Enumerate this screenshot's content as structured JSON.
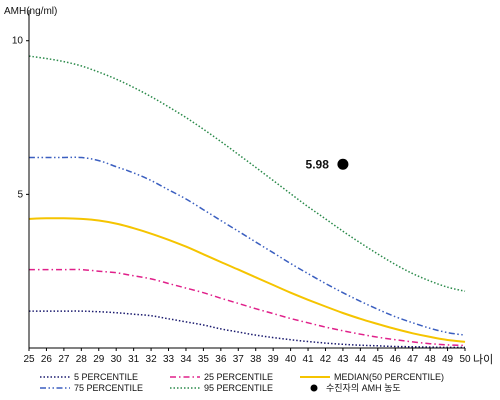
{
  "chart_data": {
    "type": "line",
    "title": "",
    "ylabel": "AMH(ng/ml)",
    "xlabel": "나이",
    "xlim": [
      25,
      50
    ],
    "ylim": [
      0,
      11
    ],
    "yticks": [
      5,
      10
    ],
    "x": [
      25,
      26,
      27,
      28,
      29,
      30,
      31,
      32,
      33,
      34,
      35,
      36,
      37,
      38,
      39,
      40,
      41,
      42,
      43,
      44,
      45,
      46,
      47,
      48,
      49,
      50
    ],
    "series": [
      {
        "name": "5 PERCENTILE",
        "color": "#1a1a6e",
        "dash": "dot",
        "values": [
          1.2,
          1.2,
          1.2,
          1.2,
          1.18,
          1.15,
          1.1,
          1.05,
          0.95,
          0.85,
          0.75,
          0.62,
          0.52,
          0.42,
          0.34,
          0.27,
          0.21,
          0.16,
          0.12,
          0.09,
          0.07,
          0.05,
          0.04,
          0.03,
          0.02,
          0.02
        ]
      },
      {
        "name": "25 PERCENTILE",
        "color": "#e0208a",
        "dash": "dashdot",
        "values": [
          2.55,
          2.55,
          2.55,
          2.55,
          2.5,
          2.45,
          2.35,
          2.25,
          2.1,
          1.95,
          1.8,
          1.62,
          1.45,
          1.28,
          1.12,
          0.96,
          0.82,
          0.68,
          0.56,
          0.45,
          0.35,
          0.27,
          0.2,
          0.14,
          0.1,
          0.08
        ]
      },
      {
        "name": "MEDIAN(50 PERCENTILE)",
        "color": "#f5c400",
        "dash": "solid",
        "values": [
          4.2,
          4.22,
          4.22,
          4.2,
          4.15,
          4.05,
          3.9,
          3.72,
          3.52,
          3.3,
          3.05,
          2.8,
          2.55,
          2.3,
          2.05,
          1.8,
          1.57,
          1.35,
          1.14,
          0.95,
          0.78,
          0.62,
          0.48,
          0.36,
          0.26,
          0.2
        ]
      },
      {
        "name": "75 PERCENTILE",
        "color": "#3b5fc0",
        "dash": "dashdotdot",
        "values": [
          6.2,
          6.2,
          6.2,
          6.2,
          6.1,
          5.9,
          5.7,
          5.45,
          5.15,
          4.85,
          4.5,
          4.15,
          3.8,
          3.45,
          3.1,
          2.75,
          2.42,
          2.1,
          1.8,
          1.52,
          1.26,
          1.02,
          0.82,
          0.64,
          0.5,
          0.42
        ]
      },
      {
        "name": "95 PERCENTILE",
        "color": "#2a8a4a",
        "dash": "dot",
        "values": [
          9.5,
          9.42,
          9.32,
          9.18,
          8.98,
          8.75,
          8.48,
          8.18,
          7.85,
          7.5,
          7.12,
          6.72,
          6.3,
          5.88,
          5.45,
          5.02,
          4.6,
          4.2,
          3.8,
          3.42,
          3.06,
          2.72,
          2.42,
          2.18,
          1.98,
          1.85
        ]
      }
    ],
    "patient": {
      "name": "수진자의 AMH 농도",
      "x": 43,
      "y": 5.98,
      "label": "5.98",
      "color": "#000000"
    },
    "legend_position": "bottom"
  }
}
